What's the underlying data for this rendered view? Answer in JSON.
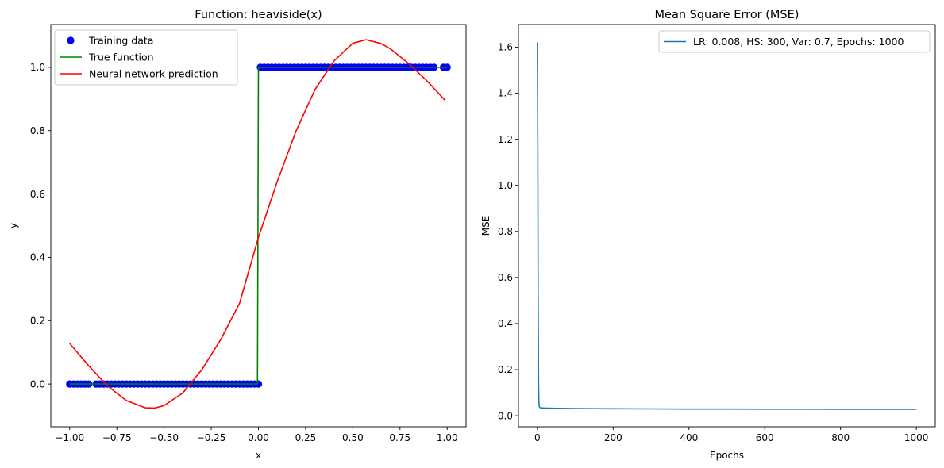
{
  "chart_data": [
    {
      "type": "line",
      "title": "Function: heaviside(x)",
      "xlabel": "x",
      "ylabel": "y",
      "xlim": [
        -1.1,
        1.1
      ],
      "ylim": [
        -0.135,
        1.135
      ],
      "xticks": [
        -1.0,
        -0.75,
        -0.5,
        -0.25,
        0.0,
        0.25,
        0.5,
        0.75,
        1.0
      ],
      "xtick_labels": [
        "−1.00",
        "−0.75",
        "−0.50",
        "−0.25",
        "0.00",
        "0.25",
        "0.50",
        "0.75",
        "1.00"
      ],
      "yticks": [
        0.0,
        0.2,
        0.4,
        0.6,
        0.8,
        1.0
      ],
      "ytick_labels": [
        "0.0",
        "0.2",
        "0.4",
        "0.6",
        "0.8",
        "1.0"
      ],
      "legend_position": "upper-left",
      "series": [
        {
          "name": "Training data",
          "kind": "scatter",
          "color": "#0000ff",
          "x": [
            -1.0,
            -0.98,
            -0.96,
            -0.94,
            -0.92,
            -0.9,
            -0.86,
            -0.84,
            -0.82,
            -0.8,
            -0.78,
            -0.76,
            -0.74,
            -0.72,
            -0.7,
            -0.68,
            -0.66,
            -0.64,
            -0.62,
            -0.6,
            -0.58,
            -0.56,
            -0.54,
            -0.52,
            -0.5,
            -0.48,
            -0.46,
            -0.44,
            -0.42,
            -0.4,
            -0.38,
            -0.36,
            -0.34,
            -0.32,
            -0.3,
            -0.28,
            -0.26,
            -0.24,
            -0.22,
            -0.2,
            -0.18,
            -0.16,
            -0.14,
            -0.12,
            -0.1,
            -0.08,
            -0.06,
            -0.04,
            -0.02,
            0.0,
            0.01,
            0.03,
            0.05,
            0.07,
            0.09,
            0.11,
            0.13,
            0.15,
            0.17,
            0.19,
            0.21,
            0.23,
            0.25,
            0.27,
            0.29,
            0.31,
            0.33,
            0.35,
            0.37,
            0.39,
            0.41,
            0.43,
            0.45,
            0.47,
            0.49,
            0.51,
            0.53,
            0.55,
            0.57,
            0.59,
            0.61,
            0.63,
            0.65,
            0.67,
            0.69,
            0.71,
            0.73,
            0.75,
            0.77,
            0.79,
            0.81,
            0.83,
            0.85,
            0.87,
            0.89,
            0.91,
            0.93,
            0.98,
            1.0
          ],
          "y": [
            0,
            0,
            0,
            0,
            0,
            0,
            0,
            0,
            0,
            0,
            0,
            0,
            0,
            0,
            0,
            0,
            0,
            0,
            0,
            0,
            0,
            0,
            0,
            0,
            0,
            0,
            0,
            0,
            0,
            0,
            0,
            0,
            0,
            0,
            0,
            0,
            0,
            0,
            0,
            0,
            0,
            0,
            0,
            0,
            0,
            0,
            0,
            0,
            0,
            0,
            1,
            1,
            1,
            1,
            1,
            1,
            1,
            1,
            1,
            1,
            1,
            1,
            1,
            1,
            1,
            1,
            1,
            1,
            1,
            1,
            1,
            1,
            1,
            1,
            1,
            1,
            1,
            1,
            1,
            1,
            1,
            1,
            1,
            1,
            1,
            1,
            1,
            1,
            1,
            1,
            1,
            1,
            1,
            1,
            1,
            1,
            1,
            1,
            1
          ]
        },
        {
          "name": "True function",
          "kind": "line",
          "color": "#008000",
          "x": [
            -1.0,
            -0.005,
            0.0,
            1.0
          ],
          "y": [
            0,
            0,
            1,
            1
          ]
        },
        {
          "name": "Neural network prediction",
          "kind": "line",
          "color": "#ff0000",
          "x": [
            -1.0,
            -0.9,
            -0.8,
            -0.7,
            -0.6,
            -0.55,
            -0.5,
            -0.4,
            -0.3,
            -0.2,
            -0.1,
            0.0,
            0.1,
            0.2,
            0.3,
            0.4,
            0.5,
            0.57,
            0.65,
            0.7,
            0.8,
            0.9,
            0.99
          ],
          "y": [
            0.128,
            0.058,
            -0.006,
            -0.052,
            -0.075,
            -0.076,
            -0.068,
            -0.028,
            0.045,
            0.14,
            0.255,
            0.463,
            0.64,
            0.8,
            0.93,
            1.02,
            1.076,
            1.087,
            1.075,
            1.058,
            1.01,
            0.953,
            0.895
          ]
        }
      ]
    },
    {
      "type": "line",
      "title": "Mean Square Error (MSE)",
      "xlabel": "Epochs",
      "ylabel": "MSE",
      "xlim": [
        -50,
        1050
      ],
      "ylim": [
        -0.048,
        1.698
      ],
      "xticks": [
        0,
        200,
        400,
        600,
        800,
        1000
      ],
      "xtick_labels": [
        "0",
        "200",
        "400",
        "600",
        "800",
        "1000"
      ],
      "yticks": [
        0.0,
        0.2,
        0.4,
        0.6,
        0.8,
        1.0,
        1.2,
        1.4,
        1.6
      ],
      "ytick_labels": [
        "0.0",
        "0.2",
        "0.4",
        "0.6",
        "0.8",
        "1.0",
        "1.2",
        "1.4",
        "1.6"
      ],
      "legend_position": "upper-right",
      "series": [
        {
          "name": "LR: 0.008, HS: 300, Var: 0.7, Epochs: 1000",
          "kind": "line",
          "color": "#1f77b4",
          "x": [
            0,
            1,
            2,
            3,
            4,
            5,
            7,
            10,
            20,
            50,
            100,
            200,
            300,
            400,
            500,
            600,
            700,
            800,
            900,
            1000
          ],
          "y": [
            1.62,
            1.2,
            0.5,
            0.15,
            0.06,
            0.04,
            0.035,
            0.034,
            0.033,
            0.032,
            0.031,
            0.03,
            0.0295,
            0.029,
            0.0288,
            0.0285,
            0.0283,
            0.028,
            0.0279,
            0.0278
          ]
        }
      ]
    }
  ]
}
